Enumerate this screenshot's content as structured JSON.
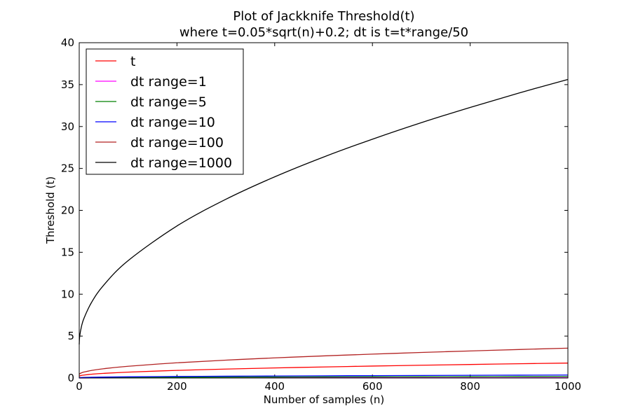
{
  "chart_data": {
    "type": "line",
    "title": "Plot of Jackknife Threshold(t)",
    "subtitle": "where t=0.05*sqrt(n)+0.2;  dt is t=t*range/50",
    "xlabel": "Number of samples (n)",
    "ylabel": "Threshold (t)",
    "xlim": [
      0,
      1000
    ],
    "ylim": [
      0,
      40
    ],
    "x_ticks": [
      "0",
      "200",
      "400",
      "600",
      "800",
      "1000"
    ],
    "y_ticks": [
      "0",
      "5",
      "10",
      "15",
      "20",
      "25",
      "30",
      "35",
      "40"
    ],
    "grid": false,
    "legend_position": "top-left",
    "x": [
      0,
      1,
      5,
      10,
      25,
      50,
      100,
      200,
      300,
      400,
      500,
      600,
      700,
      800,
      900,
      1000
    ],
    "series": [
      {
        "name": "t",
        "color": "#ff0000",
        "values": [
          0.2,
          0.25,
          0.312,
          0.358,
          0.45,
          0.554,
          0.7,
          0.907,
          1.066,
          1.2,
          1.318,
          1.425,
          1.523,
          1.614,
          1.7,
          1.781
        ]
      },
      {
        "name": "dt range=1",
        "color": "#ff00ff",
        "values": [
          0.004,
          0.005,
          0.006,
          0.007,
          0.009,
          0.011,
          0.014,
          0.018,
          0.021,
          0.024,
          0.026,
          0.028,
          0.03,
          0.032,
          0.034,
          0.036
        ]
      },
      {
        "name": "dt range=5",
        "color": "#008000",
        "values": [
          0.02,
          0.025,
          0.031,
          0.036,
          0.045,
          0.055,
          0.07,
          0.091,
          0.107,
          0.12,
          0.132,
          0.142,
          0.152,
          0.161,
          0.17,
          0.178
        ]
      },
      {
        "name": "dt range=10",
        "color": "#0000ff",
        "values": [
          0.04,
          0.05,
          0.062,
          0.072,
          0.09,
          0.111,
          0.14,
          0.181,
          0.213,
          0.24,
          0.264,
          0.285,
          0.305,
          0.323,
          0.34,
          0.356
        ]
      },
      {
        "name": "dt range=100",
        "color": "#b22222",
        "values": [
          0.4,
          0.5,
          0.624,
          0.716,
          0.9,
          1.107,
          1.4,
          1.814,
          2.132,
          2.4,
          2.636,
          2.849,
          3.046,
          3.228,
          3.4,
          3.562
        ]
      },
      {
        "name": "dt range=1000",
        "color": "#000000",
        "values": [
          4.0,
          5.0,
          6.24,
          7.16,
          9.0,
          11.07,
          14.0,
          18.14,
          21.32,
          24.0,
          26.36,
          28.49,
          30.46,
          32.28,
          34.0,
          35.62
        ]
      }
    ]
  }
}
